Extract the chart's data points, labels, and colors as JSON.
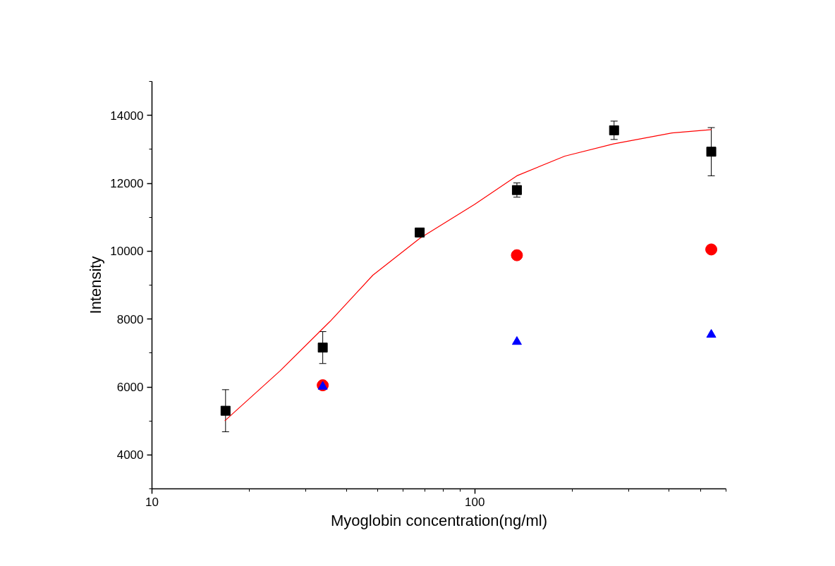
{
  "chart_data": {
    "type": "scatter",
    "xlabel": "Myoglobin concentration(ng/ml)",
    "ylabel": "Intensity",
    "log": "x",
    "grid": false,
    "xlim": [
      10,
      600
    ],
    "ylim": [
      3000,
      15000
    ],
    "xticks": [
      10,
      {
        "value": 20,
        "label": null
      },
      {
        "value": 30,
        "label": null
      },
      {
        "value": 40,
        "label": null
      },
      {
        "value": 50,
        "label": null
      },
      {
        "value": 60,
        "label": null
      },
      {
        "value": 70,
        "label": null
      },
      {
        "value": 80,
        "label": null
      },
      {
        "value": 90,
        "label": null
      },
      100,
      {
        "value": 200,
        "label": null
      },
      {
        "value": 300,
        "label": null
      },
      {
        "value": 400,
        "label": null
      },
      {
        "value": 500,
        "label": null
      },
      {
        "value": 600,
        "label": null
      }
    ],
    "yticks": [
      {
        "value": 3000,
        "label": null
      },
      4000,
      {
        "value": 5000,
        "label": null
      },
      6000,
      {
        "value": 7000,
        "label": null
      },
      8000,
      {
        "value": 9000,
        "label": null
      },
      10000,
      {
        "value": 11000,
        "label": null
      },
      12000,
      {
        "value": 13000,
        "label": null
      },
      14000,
      {
        "value": 15000,
        "label": null
      }
    ],
    "series": [
      {
        "type": "line",
        "color": "#ff0000",
        "marker": "none",
        "line_style": "solid",
        "x": [
          16.8,
          24.9,
          35.6,
          48.3,
          67.6,
          100,
          135,
          190,
          269,
          408,
          541
        ],
        "values": [
          5000,
          6470,
          7930,
          9290,
          10380,
          11380,
          12220,
          12800,
          13160,
          13480,
          13580
        ]
      },
      {
        "color": "#000000",
        "marker": "square",
        "x": [
          16.9,
          33.8,
          67.5,
          135,
          270,
          540
        ],
        "values": [
          5300,
          7160,
          10550,
          11800,
          13560,
          12930
        ],
        "errors": [
          620,
          470,
          100,
          210,
          270,
          710
        ]
      },
      {
        "color": "#ff0000",
        "marker": "circle",
        "x": [
          33.8,
          135,
          540
        ],
        "values": [
          6050,
          9880,
          10050
        ]
      },
      {
        "color": "#0000ff",
        "marker": "triangle",
        "x": [
          33.8,
          135,
          540
        ],
        "values": [
          6010,
          7330,
          7540
        ]
      }
    ]
  }
}
